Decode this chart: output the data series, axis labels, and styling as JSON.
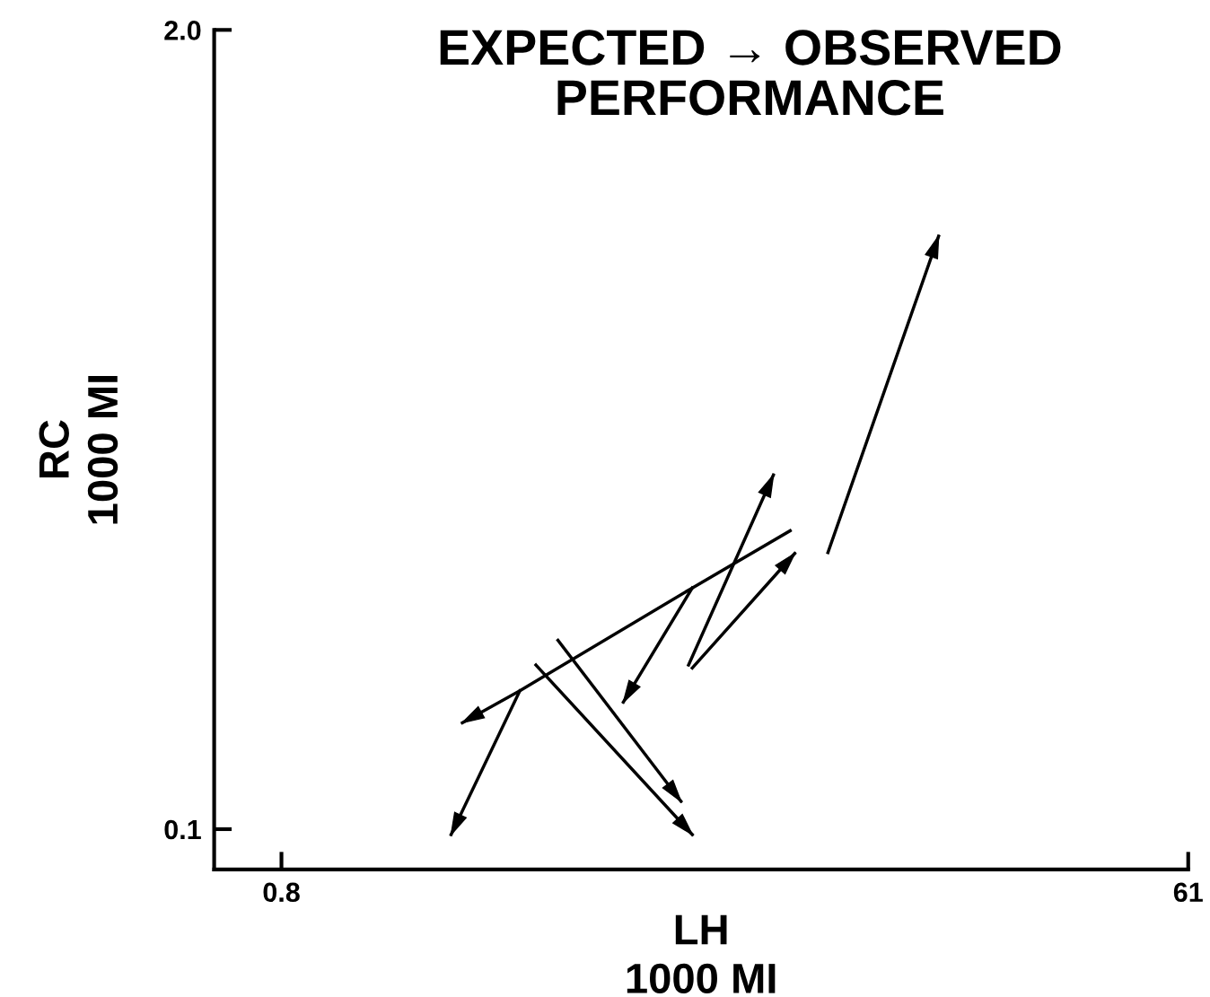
{
  "chart_data": {
    "type": "line",
    "title": "EXPECTED → OBSERVED\nPERFORMANCE",
    "xlabel": "LH\n1000 MI",
    "ylabel": "RC\n1000 MI",
    "log": "xy",
    "xlim": [
      0.58,
      61
    ],
    "ylim": [
      0.086,
      2.0
    ],
    "xticks": [
      0.8,
      61
    ],
    "yticks": [
      0.1,
      {
        "value": 2.0,
        "label": "2.0"
      }
    ],
    "grid": false,
    "legend": false,
    "marker": "none",
    "line_style": "solid",
    "series": [
      {
        "color": "#000000",
        "x": [
          10.9,
          18.5
        ],
        "values": [
          0.282,
          0.923
        ]
      },
      {
        "color": "#000000",
        "x": [
          9.1,
          5.7,
          2.5,
          1.9
        ],
        "values": [
          0.306,
          0.247,
          0.168,
          0.149
        ]
      },
      {
        "color": "#000000",
        "x": [
          5.7,
          4.1
        ],
        "values": [
          0.247,
          0.161
        ]
      },
      {
        "color": "#000000",
        "x": [
          2.5,
          1.8
        ],
        "values": [
          0.168,
          0.098
        ]
      },
      {
        "color": "#000000",
        "x": [
          5.6,
          8.4
        ],
        "values": [
          0.185,
          0.377
        ]
      },
      {
        "color": "#000000",
        "x": [
          5.7,
          9.3
        ],
        "values": [
          0.183,
          0.281
        ]
      },
      {
        "color": "#000000",
        "x": [
          2.7,
          5.7
        ],
        "values": [
          0.185,
          0.098
        ]
      },
      {
        "color": "#000000",
        "x": [
          3.0,
          5.4
        ],
        "values": [
          0.203,
          0.111
        ]
      }
    ]
  }
}
